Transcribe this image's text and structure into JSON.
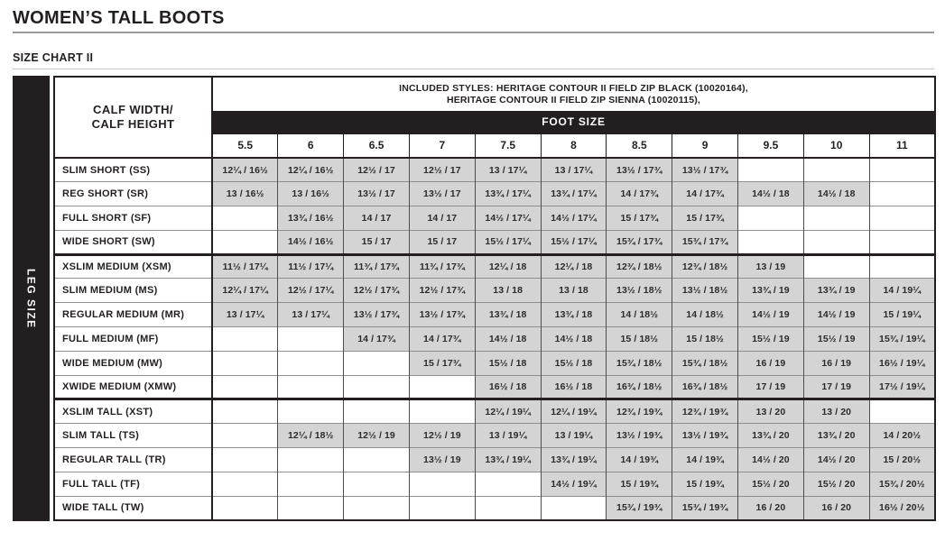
{
  "page": {
    "title": "WOMEN’S TALL BOOTS",
    "subtitle": "SIZE CHART II"
  },
  "table": {
    "leg_size_label": "LEG SIZE",
    "corner_label_line1": "CALF WIDTH/",
    "corner_label_line2": "CALF HEIGHT",
    "included_styles_line1": "INCLUDED STYLES: HERITAGE CONTOUR II FIELD ZIP BLACK (10020164),",
    "included_styles_line2": "HERITAGE CONTOUR II FIELD ZIP SIENNA (10020115),",
    "foot_size_label": "FOOT SIZE",
    "foot_sizes": [
      "5.5",
      "6",
      "6.5",
      "7",
      "7.5",
      "8",
      "8.5",
      "9",
      "9.5",
      "10",
      "11"
    ],
    "rows": [
      {
        "label": "SLIM SHORT (SS)",
        "group": "short",
        "values": [
          "12¼ / 16½",
          "12¼ / 16½",
          "12½ / 17",
          "12½ / 17",
          "13 / 17¼",
          "13 / 17¼",
          "13½ / 17¾",
          "13½ / 17¾",
          "",
          "",
          ""
        ]
      },
      {
        "label": "REG SHORT (SR)",
        "group": "short",
        "values": [
          "13 / 16½",
          "13 / 16½",
          "13½ / 17",
          "13½ / 17",
          "13¾ / 17¼",
          "13¾ / 17¼",
          "14 / 17¾",
          "14 / 17¾",
          "14½ / 18",
          "14½ / 18",
          ""
        ]
      },
      {
        "label": "FULL SHORT (SF)",
        "group": "short",
        "values": [
          "",
          "13¾ / 16½",
          "14 / 17",
          "14 / 17",
          "14½ / 17¼",
          "14½ / 17¼",
          "15 / 17¾",
          "15 / 17¾",
          "",
          "",
          ""
        ]
      },
      {
        "label": "WIDE SHORT (SW)",
        "group": "short",
        "values": [
          "",
          "14½ / 16½",
          "15 / 17",
          "15 / 17",
          "15½ / 17¼",
          "15½ / 17¼",
          "15¾ / 17¾",
          "15¾ / 17¾",
          "",
          "",
          ""
        ]
      },
      {
        "label": "XSLIM MEDIUM (XSM)",
        "group": "medium",
        "values": [
          "11½ / 17¼",
          "11½ / 17¼",
          "11¾ / 17¾",
          "11¾ / 17¾",
          "12¼ / 18",
          "12¼ / 18",
          "12¾ / 18½",
          "12¾ / 18½",
          "13 / 19",
          "",
          ""
        ]
      },
      {
        "label": "SLIM MEDIUM (MS)",
        "group": "medium",
        "values": [
          "12¼ / 17¼",
          "12½ / 17¼",
          "12½ / 17¾",
          "12½ / 17¾",
          "13 / 18",
          "13 / 18",
          "13½ / 18½",
          "13½ / 18½",
          "13¾ / 19",
          "13¾ / 19",
          "14 / 19¼"
        ]
      },
      {
        "label": "REGULAR MEDIUM (MR)",
        "group": "medium",
        "values": [
          "13 / 17¼",
          "13 / 17¼",
          "13½ / 17¾",
          "13½ / 17¾",
          "13¾ / 18",
          "13¾ / 18",
          "14 / 18½",
          "14 / 18½",
          "14½ / 19",
          "14½ / 19",
          "15 / 19¼"
        ]
      },
      {
        "label": "FULL MEDIUM (MF)",
        "group": "medium",
        "values": [
          "",
          "",
          "14 / 17¾",
          "14 / 17¾",
          "14½ / 18",
          "14½ / 18",
          "15 / 18½",
          "15 / 18½",
          "15½ / 19",
          "15½ / 19",
          "15¾ / 19¼"
        ]
      },
      {
        "label": "WIDE MEDIUM (MW)",
        "group": "medium",
        "values": [
          "",
          "",
          "",
          "15 / 17¾",
          "15½ / 18",
          "15½ / 18",
          "15¾ / 18½",
          "15¾ / 18½",
          "16 / 19",
          "16 / 19",
          "16½ / 19¼"
        ]
      },
      {
        "label": "XWIDE MEDIUM (XMW)",
        "group": "medium",
        "values": [
          "",
          "",
          "",
          "",
          "16½ / 18",
          "16½ / 18",
          "16¾ / 18½",
          "16¾ / 18½",
          "17 / 19",
          "17 / 19",
          "17½ / 19¼"
        ]
      },
      {
        "label": "XSLIM TALL (XST)",
        "group": "tall",
        "values": [
          "",
          "",
          "",
          "",
          "12¼ / 19¼",
          "12¼ / 19¼",
          "12¾ / 19¾",
          "12¾ / 19¾",
          "13 / 20",
          "13 / 20",
          ""
        ]
      },
      {
        "label": "SLIM TALL (TS)",
        "group": "tall",
        "values": [
          "",
          "12¼ / 18½",
          "12½ / 19",
          "12½ / 19",
          "13 / 19¼",
          "13 / 19¼",
          "13½ / 19¾",
          "13½ / 19¾",
          "13¾ / 20",
          "13¾ / 20",
          "14 / 20½"
        ]
      },
      {
        "label": "REGULAR TALL (TR)",
        "group": "tall",
        "values": [
          "",
          "",
          "",
          "13½ / 19",
          "13¾ / 19¼",
          "13¾ / 19¼",
          "14 / 19¾",
          "14 / 19¾",
          "14½ / 20",
          "14½ / 20",
          "15 / 20½"
        ]
      },
      {
        "label": "FULL TALL (TF)",
        "group": "tall",
        "values": [
          "",
          "",
          "",
          "",
          "",
          "14½ / 19¼",
          "15 / 19¾",
          "15 / 19¾",
          "15½ / 20",
          "15½ / 20",
          "15¾ / 20½"
        ]
      },
      {
        "label": "WIDE TALL (TW)",
        "group": "tall",
        "values": [
          "",
          "",
          "",
          "",
          "",
          "",
          "15¾ / 19¾",
          "15¾ / 19¾",
          "16 / 20",
          "16 / 20",
          "16½ / 20½"
        ]
      }
    ]
  },
  "colors": {
    "black": "#231f20",
    "filled_cell": "#d4d4d4",
    "white": "#ffffff"
  }
}
